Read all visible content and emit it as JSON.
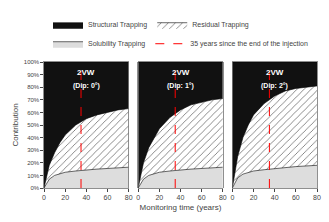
{
  "chart_data": [
    {
      "type": "area",
      "stacked": true,
      "title": "2VW",
      "subtitle": "(Dip: 0°)",
      "x": [
        0,
        5,
        10,
        15,
        20,
        30,
        40,
        50,
        60,
        70,
        80
      ],
      "series": [
        {
          "name": "Structural Trapping",
          "color": "#111111",
          "values": [
            100,
            82,
            72,
            64,
            58,
            50,
            45,
            42,
            40,
            38,
            37
          ]
        },
        {
          "name": "Residual Trapping",
          "color": "#ffffff",
          "values": [
            0,
            11,
            18,
            24.5,
            29.5,
            36.5,
            40.5,
            43,
            44.5,
            46,
            46.5
          ]
        },
        {
          "name": "Solubility Trapping",
          "color": "#dddddd",
          "values": [
            0,
            7,
            10,
            11.5,
            12.5,
            13.5,
            14.5,
            15.0,
            15.5,
            16.0,
            16.5
          ]
        }
      ],
      "vline": {
        "x": 35,
        "name": "35 years since the end of the injection",
        "color": "red",
        "line_style": "dashed"
      },
      "xlim": [
        0,
        80
      ],
      "xticks": [
        0,
        20,
        40,
        60,
        80
      ],
      "ylim": [
        0,
        100
      ],
      "yticks": [
        {
          "value": 0,
          "label": "0%"
        },
        {
          "value": 10,
          "label": "10%"
        },
        {
          "value": 20,
          "label": "20%"
        },
        {
          "value": 30,
          "label": "30%"
        },
        {
          "value": 40,
          "label": "40%"
        },
        {
          "value": 50,
          "label": "50%"
        },
        {
          "value": 60,
          "label": "60%"
        },
        {
          "value": 70,
          "label": "70%"
        },
        {
          "value": 80,
          "label": "80%"
        },
        {
          "value": 90,
          "label": "90%"
        },
        {
          "value": 100,
          "label": "100%"
        }
      ],
      "grid": false,
      "legend": "top",
      "ylabel": "Contribution"
    },
    {
      "type": "area",
      "stacked": true,
      "title": "2VW",
      "subtitle": "(Dip: 1°)",
      "x": [
        0,
        5,
        10,
        15,
        20,
        30,
        40,
        50,
        60,
        70,
        80
      ],
      "series": [
        {
          "name": "Structural Trapping",
          "color": "#111111",
          "values": [
            100,
            80,
            68,
            60,
            53,
            44,
            38,
            34,
            32,
            30,
            29
          ]
        },
        {
          "name": "Residual Trapping",
          "color": "#ffffff",
          "values": [
            0,
            13,
            22,
            28.5,
            34.5,
            42.5,
            47.5,
            51,
            52.5,
            54,
            54.5
          ]
        },
        {
          "name": "Solubility Trapping",
          "color": "#dddddd",
          "values": [
            0,
            7,
            10,
            11.5,
            12.5,
            13.5,
            14.5,
            15.0,
            15.5,
            16.0,
            16.5
          ]
        }
      ],
      "vline": {
        "x": 35,
        "name": "35 years since the end of the injection",
        "color": "red",
        "line_style": "dashed"
      },
      "xlim": [
        0,
        80
      ],
      "xticks": [
        0,
        20,
        40,
        60,
        80
      ],
      "ylim": [
        0,
        100
      ],
      "yticks": [
        {
          "value": 0,
          "label": "0%"
        },
        {
          "value": 10,
          "label": "10%"
        },
        {
          "value": 20,
          "label": "20%"
        },
        {
          "value": 30,
          "label": "30%"
        },
        {
          "value": 40,
          "label": "40%"
        },
        {
          "value": 50,
          "label": "50%"
        },
        {
          "value": 60,
          "label": "60%"
        },
        {
          "value": 70,
          "label": "70%"
        },
        {
          "value": 80,
          "label": "80%"
        },
        {
          "value": 90,
          "label": "90%"
        },
        {
          "value": 100,
          "label": "100%"
        }
      ],
      "grid": false,
      "tick_labels": "x",
      "xlabel": "Monitoring time (years)"
    },
    {
      "type": "area",
      "stacked": true,
      "title": "2VW",
      "subtitle": "(Dip: 2°)",
      "x": [
        0,
        5,
        10,
        15,
        20,
        30,
        40,
        50,
        60,
        70,
        80
      ],
      "series": [
        {
          "name": "Structural Trapping",
          "color": "#111111",
          "values": [
            100,
            75,
            60,
            50,
            42,
            33,
            27,
            23,
            21,
            20,
            19
          ]
        },
        {
          "name": "Residual Trapping",
          "color": "#ffffff",
          "values": [
            0,
            17,
            29,
            37.5,
            44.5,
            52.5,
            57.5,
            60.5,
            62,
            62.5,
            63
          ]
        },
        {
          "name": "Solubility Trapping",
          "color": "#dddddd",
          "values": [
            0,
            8,
            11,
            12.5,
            13.5,
            14.5,
            15.5,
            16.5,
            17.0,
            17.5,
            18.0
          ]
        }
      ],
      "vline": {
        "x": 35,
        "name": "35 years since the end of the injection",
        "color": "red",
        "line_style": "dashed"
      },
      "xlim": [
        0,
        80
      ],
      "xticks": [
        0,
        20,
        40,
        60,
        80
      ],
      "ylim": [
        0,
        100
      ],
      "yticks": [
        {
          "value": 0,
          "label": "0%"
        },
        {
          "value": 10,
          "label": "10%"
        },
        {
          "value": 20,
          "label": "20%"
        },
        {
          "value": 30,
          "label": "30%"
        },
        {
          "value": 40,
          "label": "40%"
        },
        {
          "value": 50,
          "label": "50%"
        },
        {
          "value": 60,
          "label": "60%"
        },
        {
          "value": 70,
          "label": "70%"
        },
        {
          "value": 80,
          "label": "80%"
        },
        {
          "value": 90,
          "label": "90%"
        },
        {
          "value": 100,
          "label": "100%"
        }
      ],
      "grid": false,
      "tick_labels": "x"
    }
  ]
}
